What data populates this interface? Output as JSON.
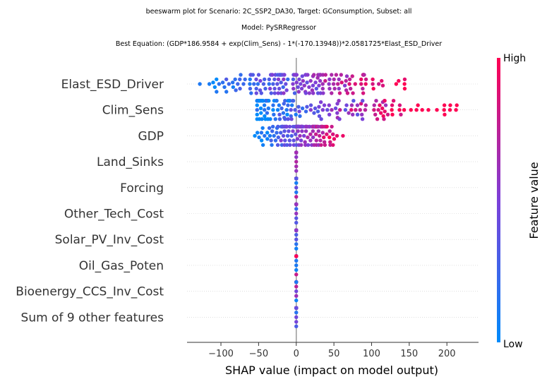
{
  "chart_data": {
    "type": "scatter",
    "subtype": "beeswarm",
    "title_lines": [
      "beeswarm plot for Scenario: 2C_SSP2_DA30, Target: GConsumption, Subset: all",
      "Model: PySRRegressor",
      "Best Equation: (GDP*186.9584 + exp(Clim_Sens) - 1*(-170.13948))*2.0581725*Elast_ESD_Driver"
    ],
    "xlabel": "SHAP value (impact on model output)",
    "xlim": [
      -145,
      242
    ],
    "xticks": [
      -100,
      -50,
      0,
      50,
      100,
      150,
      200
    ],
    "xtick_labels": [
      "−100",
      "−50",
      "0",
      "50",
      "100",
      "150",
      "200"
    ],
    "features": [
      {
        "name": "Elast_ESD_Driver",
        "shap_min": -128,
        "shap_max": 144,
        "spread": "wide"
      },
      {
        "name": "Clim_Sens",
        "shap_min": -52,
        "shap_max": 225,
        "spread": "right-skewed"
      },
      {
        "name": "GDP",
        "shap_min": -55,
        "shap_max": 62,
        "spread": "moderate"
      },
      {
        "name": "Land_Sinks",
        "shap_min": 0,
        "shap_max": 0,
        "spread": "zero"
      },
      {
        "name": "Forcing",
        "shap_min": 0,
        "shap_max": 0,
        "spread": "zero"
      },
      {
        "name": "Other_Tech_Cost",
        "shap_min": 0,
        "shap_max": 0,
        "spread": "zero"
      },
      {
        "name": "Solar_PV_Inv_Cost",
        "shap_min": 0,
        "shap_max": 0,
        "spread": "zero"
      },
      {
        "name": "Oil_Gas_Poten",
        "shap_min": 0,
        "shap_max": 0,
        "spread": "zero"
      },
      {
        "name": "Bioenergy_CCS_Inv_Cost",
        "shap_min": 0,
        "shap_max": 0,
        "spread": "zero"
      },
      {
        "name": "Sum of 9 other features",
        "shap_min": 0,
        "shap_max": 0,
        "spread": "zero"
      }
    ],
    "colorbar": {
      "title": "Feature value",
      "high_label": "High",
      "low_label": "Low",
      "low_color": "#008bfb",
      "mid_color": "#7c40d9",
      "high_color": "#ff0052"
    },
    "zero_line_color": "#999999",
    "grid": false
  }
}
